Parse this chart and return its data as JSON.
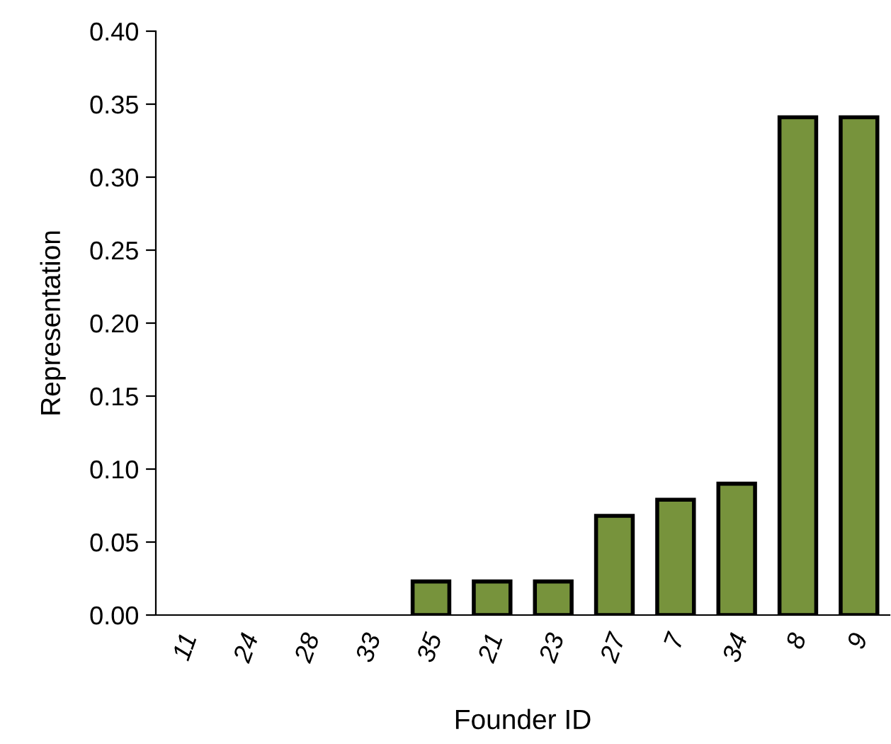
{
  "chart_data": {
    "type": "bar",
    "xlabel": "Founder ID",
    "ylabel": "Representation",
    "categories": [
      "11",
      "24",
      "28",
      "33",
      "35",
      "21",
      "23",
      "27",
      "7",
      "34",
      "8",
      "9"
    ],
    "values": [
      0,
      0,
      0,
      0,
      0.023,
      0.023,
      0.023,
      0.068,
      0.079,
      0.09,
      0.341,
      0.341
    ],
    "color": "#77933c",
    "ylim": [
      0,
      0.4
    ],
    "yticks": [
      {
        "value": 0,
        "label": "0.00"
      },
      {
        "value": 0.05,
        "label": "0.05"
      },
      {
        "value": 0.1,
        "label": "0.10"
      },
      {
        "value": 0.15,
        "label": "0.15"
      },
      {
        "value": 0.2,
        "label": "0.20"
      },
      {
        "value": 0.25,
        "label": "0.25"
      },
      {
        "value": 0.3,
        "label": "0.30"
      },
      {
        "value": 0.35,
        "label": "0.35"
      },
      {
        "value": 0.4,
        "label": "0.40"
      }
    ],
    "grid": false,
    "legend": false
  }
}
